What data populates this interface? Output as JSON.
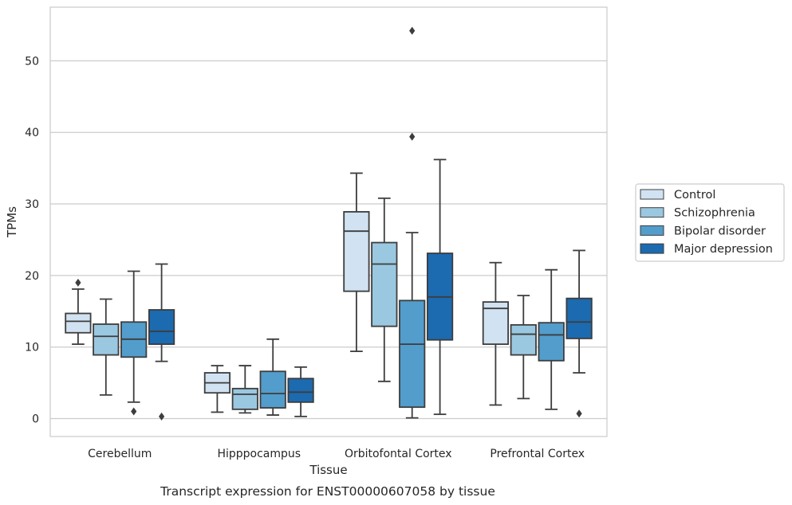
{
  "chart_data": {
    "type": "boxplot",
    "caption": "Transcript expression for ENST00000607058 by tissue",
    "xlabel": "Tissue",
    "ylabel": "TPMs",
    "ylim": [
      -2.5,
      57.5
    ],
    "yticks": [
      0,
      10,
      20,
      30,
      40,
      50
    ],
    "grid": true,
    "legend_position": "right",
    "categories": [
      "Cerebellum",
      "Hipppocampus",
      "Orbitofontal Cortex",
      "Prefrontal Cortex"
    ],
    "series": [
      {
        "name": "Control",
        "color": "#d1e2f2",
        "boxes": [
          {
            "whisker_low": 10.4,
            "q1": 12.0,
            "median": 13.6,
            "q3": 14.7,
            "whisker_high": 18.1,
            "outliers": [
              19.0
            ]
          },
          {
            "whisker_low": 0.9,
            "q1": 3.6,
            "median": 5.0,
            "q3": 6.4,
            "whisker_high": 7.4,
            "outliers": []
          },
          {
            "whisker_low": 9.4,
            "q1": 17.8,
            "median": 26.2,
            "q3": 28.9,
            "whisker_high": 34.3,
            "outliers": []
          },
          {
            "whisker_low": 1.9,
            "q1": 10.4,
            "median": 15.4,
            "q3": 16.3,
            "whisker_high": 21.8,
            "outliers": []
          }
        ]
      },
      {
        "name": "Schizophrenia",
        "color": "#9ac8e0",
        "boxes": [
          {
            "whisker_low": 3.3,
            "q1": 8.9,
            "median": 11.5,
            "q3": 13.2,
            "whisker_high": 16.7,
            "outliers": []
          },
          {
            "whisker_low": 0.8,
            "q1": 1.3,
            "median": 3.4,
            "q3": 4.2,
            "whisker_high": 7.4,
            "outliers": []
          },
          {
            "whisker_low": 5.2,
            "q1": 12.9,
            "median": 21.6,
            "q3": 24.6,
            "whisker_high": 30.8,
            "outliers": []
          },
          {
            "whisker_low": 2.8,
            "q1": 8.9,
            "median": 11.8,
            "q3": 13.1,
            "whisker_high": 17.2,
            "outliers": []
          }
        ]
      },
      {
        "name": "Bipolar disorder",
        "color": "#529dcc",
        "boxes": [
          {
            "whisker_low": 2.3,
            "q1": 8.6,
            "median": 11.1,
            "q3": 13.5,
            "whisker_high": 20.6,
            "outliers": [
              1.0
            ]
          },
          {
            "whisker_low": 0.5,
            "q1": 1.5,
            "median": 3.5,
            "q3": 6.6,
            "whisker_high": 11.1,
            "outliers": []
          },
          {
            "whisker_low": 0.1,
            "q1": 1.6,
            "median": 10.4,
            "q3": 16.5,
            "whisker_high": 26.0,
            "outliers": [
              39.4,
              54.2
            ]
          },
          {
            "whisker_low": 1.3,
            "q1": 8.1,
            "median": 11.7,
            "q3": 13.4,
            "whisker_high": 20.8,
            "outliers": []
          }
        ]
      },
      {
        "name": "Major depression",
        "color": "#1c6aaf",
        "boxes": [
          {
            "whisker_low": 8.0,
            "q1": 10.4,
            "median": 12.2,
            "q3": 15.2,
            "whisker_high": 21.6,
            "outliers": [
              0.3
            ]
          },
          {
            "whisker_low": 0.3,
            "q1": 2.3,
            "median": 3.7,
            "q3": 5.6,
            "whisker_high": 7.2,
            "outliers": []
          },
          {
            "whisker_low": 0.6,
            "q1": 11.0,
            "median": 17.0,
            "q3": 23.1,
            "whisker_high": 36.2,
            "outliers": []
          },
          {
            "whisker_low": 6.4,
            "q1": 11.2,
            "median": 13.5,
            "q3": 16.8,
            "whisker_high": 23.5,
            "outliers": [
              0.7
            ]
          }
        ]
      }
    ]
  }
}
